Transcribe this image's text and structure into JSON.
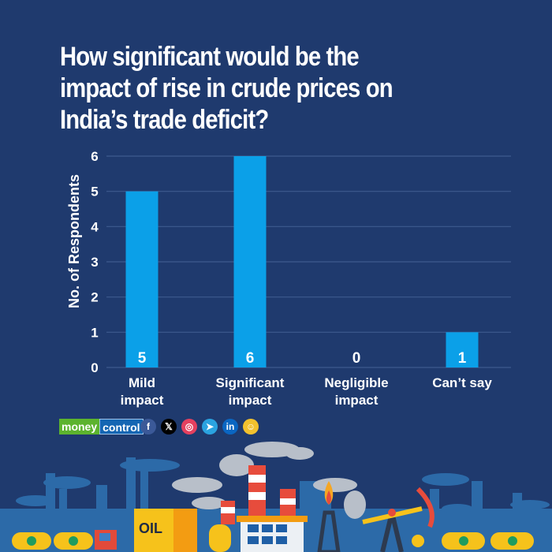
{
  "title_lines": [
    "How significant would be the",
    "impact of rise in crude prices on",
    "India’s trade deficit?"
  ],
  "brand": {
    "part1": "money",
    "part2": "control"
  },
  "socials": [
    {
      "name": "facebook",
      "glyph": "f",
      "color": "#3b5998"
    },
    {
      "name": "x",
      "glyph": "𝕏",
      "color": "#000000"
    },
    {
      "name": "instagram",
      "glyph": "◎",
      "color": "#e4405f"
    },
    {
      "name": "telegram",
      "glyph": "➤",
      "color": "#2aa3e0"
    },
    {
      "name": "linkedin",
      "glyph": "in",
      "color": "#0a66c2"
    },
    {
      "name": "snapchat",
      "glyph": "☺",
      "color": "#f2c12e"
    }
  ],
  "colors": {
    "background": "#1f3a6e",
    "bar": "#0ba0e8",
    "grid": "#3f5a8e"
  },
  "chart_data": {
    "type": "bar",
    "title": "How significant would be the impact of rise in crude prices on India’s trade deficit?",
    "categories": [
      [
        "Mild",
        "impact"
      ],
      [
        "Significant",
        "impact"
      ],
      [
        "Negligible",
        "impact"
      ],
      [
        "Can’t say"
      ]
    ],
    "values": [
      5,
      6,
      0,
      1
    ],
    "xlabel": "",
    "ylabel": "No. of Respondents",
    "ylim": [
      0,
      6
    ],
    "yticks": [
      0,
      1,
      2,
      3,
      4,
      5,
      6
    ],
    "grid": true,
    "data_labels": [
      "5",
      "6",
      "0",
      "1"
    ]
  }
}
